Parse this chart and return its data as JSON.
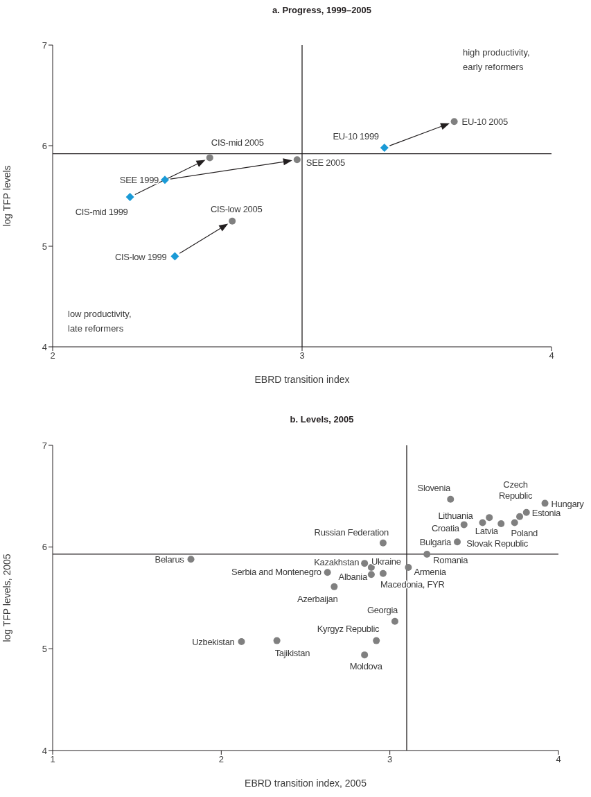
{
  "chart_data": [
    {
      "type": "scatter",
      "title": "a. Progress, 1999–2005",
      "xlabel": "EBRD transition index",
      "ylabel": "log TFP levels",
      "xlim": [
        2,
        4
      ],
      "xticks": [
        2,
        3,
        4
      ],
      "ylim": [
        4,
        7
      ],
      "yticks": [
        4,
        5,
        6,
        7
      ],
      "grid": false,
      "legend": false,
      "series": [
        {
          "color": "#1a9ad6",
          "marker": "diamond",
          "x": [
            2.31,
            2.45,
            2.49,
            3.33
          ],
          "values": [
            5.49,
            5.66,
            4.9,
            5.98
          ]
        },
        {
          "color": "#808080",
          "marker": "circle",
          "x": [
            2.63,
            2.98,
            2.72,
            3.61
          ],
          "values": [
            5.88,
            5.86,
            5.25,
            6.24
          ]
        }
      ],
      "ref_lines": [
        {
          "axis": "x",
          "value": 3,
          "color": "#231f20"
        },
        {
          "axis": "y",
          "value": 5.92,
          "color": "#231f20"
        }
      ],
      "annotations": [
        {
          "text": "CIS-mid 1999",
          "x": 2.31,
          "y": 5.49
        },
        {
          "text": "SEE 1999",
          "x": 2.45,
          "y": 5.66
        },
        {
          "text": "CIS-low 1999",
          "x": 2.49,
          "y": 4.9
        },
        {
          "text": "EU-10 1999",
          "x": 3.33,
          "y": 5.98
        },
        {
          "text": "CIS-mid 2005",
          "x": 2.63,
          "y": 5.88
        },
        {
          "text": "SEE 2005",
          "x": 2.98,
          "y": 5.86
        },
        {
          "text": "CIS-low 2005",
          "x": 2.72,
          "y": 5.25
        },
        {
          "text": "EU-10 2005",
          "x": 3.61,
          "y": 6.24
        },
        "high productivity,\nearly reformers",
        "low productivity,\nlate reformers"
      ]
    },
    {
      "type": "scatter",
      "title": "b. Levels, 2005",
      "xlabel": "EBRD transition index, 2005",
      "ylabel": "log TFP levels, 2005",
      "xlim": [
        1,
        4
      ],
      "xticks": [
        1,
        2,
        3,
        4
      ],
      "ylim": [
        4,
        7
      ],
      "yticks": [
        4,
        5,
        6,
        7
      ],
      "grid": false,
      "legend": false,
      "series": [
        {
          "color": "#808080",
          "marker": "circle",
          "x": [
            3.36,
            3.77,
            3.92,
            3.81,
            3.55,
            3.59,
            3.44,
            3.74,
            3.66,
            3.4,
            2.96,
            3.22,
            2.85,
            2.89,
            3.11,
            2.63,
            2.89,
            2.96,
            1.82,
            2.67,
            3.03,
            2.92,
            2.12,
            2.33,
            2.85
          ],
          "values": [
            6.47,
            6.3,
            6.43,
            6.34,
            6.24,
            6.29,
            6.22,
            6.24,
            6.23,
            6.05,
            6.04,
            5.93,
            5.84,
            5.8,
            5.8,
            5.75,
            5.73,
            5.74,
            5.88,
            5.61,
            5.27,
            5.08,
            5.07,
            5.08,
            4.94
          ]
        }
      ],
      "ref_lines": [
        {
          "axis": "x",
          "value": 3.1,
          "color": "#231f20"
        },
        {
          "axis": "y",
          "value": 5.93,
          "color": "#231f20"
        }
      ],
      "annotations": [
        {
          "text": "Slovenia",
          "x": 3.36,
          "y": 6.47
        },
        {
          "text": "Czech Republic",
          "x": 3.77,
          "y": 6.3
        },
        {
          "text": "Hungary",
          "x": 3.92,
          "y": 6.43
        },
        {
          "text": "Estonia",
          "x": 3.81,
          "y": 6.34
        },
        {
          "text": "Lithuania",
          "x": 3.55,
          "y": 6.24
        },
        {
          "text": "Latvia",
          "x": 3.59,
          "y": 6.29
        },
        {
          "text": "Croatia",
          "x": 3.44,
          "y": 6.22
        },
        {
          "text": "Poland",
          "x": 3.74,
          "y": 6.24
        },
        {
          "text": "Slovak Republic",
          "x": 3.66,
          "y": 6.23
        },
        {
          "text": "Bulgaria",
          "x": 3.4,
          "y": 6.05
        },
        {
          "text": "Russian Federation",
          "x": 2.96,
          "y": 6.04
        },
        {
          "text": "Romania",
          "x": 3.22,
          "y": 5.93
        },
        {
          "text": "Kazakhstan",
          "x": 2.85,
          "y": 5.84
        },
        {
          "text": "Ukraine",
          "x": 2.89,
          "y": 5.8
        },
        {
          "text": "Armenia",
          "x": 3.11,
          "y": 5.8
        },
        {
          "text": "Serbia and Montenegro",
          "x": 2.63,
          "y": 5.75
        },
        {
          "text": "Albania",
          "x": 2.89,
          "y": 5.73
        },
        {
          "text": "Macedonia, FYR",
          "x": 2.96,
          "y": 5.74
        },
        {
          "text": "Belarus",
          "x": 1.82,
          "y": 5.88
        },
        {
          "text": "Azerbaijan",
          "x": 2.67,
          "y": 5.61
        },
        {
          "text": "Georgia",
          "x": 3.03,
          "y": 5.27
        },
        {
          "text": "Kyrgyz Republic",
          "x": 2.92,
          "y": 5.08
        },
        {
          "text": "Uzbekistan",
          "x": 2.12,
          "y": 5.07
        },
        {
          "text": "Tajikistan",
          "x": 2.33,
          "y": 5.08
        },
        {
          "text": "Moldova",
          "x": 2.85,
          "y": 4.94
        }
      ]
    }
  ]
}
